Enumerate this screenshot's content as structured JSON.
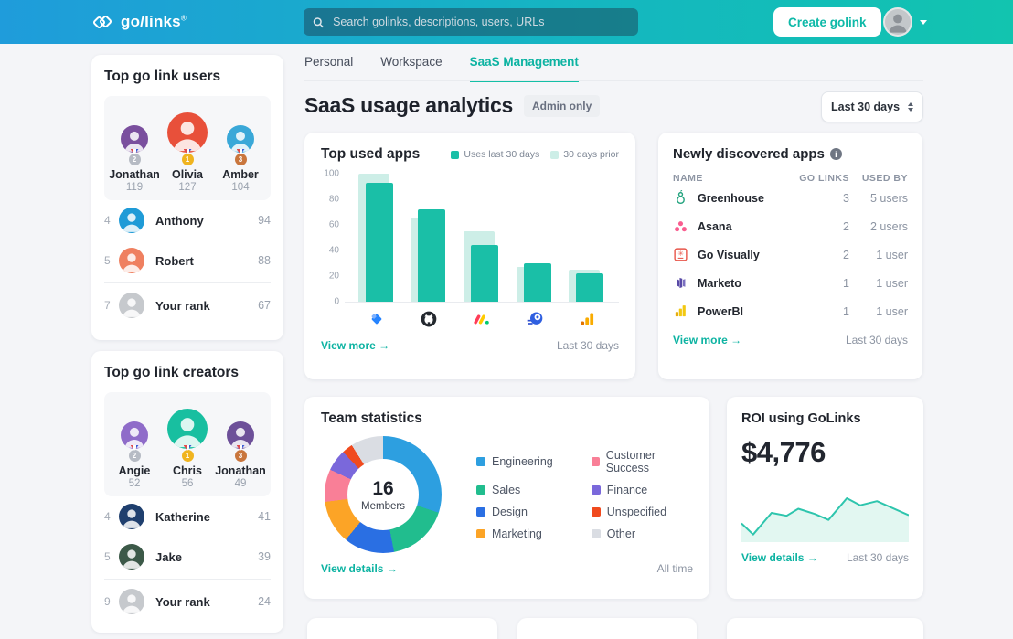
{
  "topbar": {
    "logo_text": "go/links",
    "logo_reg": "®",
    "search_placeholder": "Search golinks, descriptions, users, URLs",
    "create_button": "Create golink",
    "accent_color": "#0eb9a8",
    "gradient": [
      "#1f9cdb",
      "#12c4af"
    ]
  },
  "sidebar": {
    "cards": [
      {
        "key": "users_card",
        "title": "Top go link users",
        "podium": [
          {
            "name": "Jonathan",
            "value": "119",
            "medal": "2",
            "medal_type": "silver",
            "avatar_color": "#7a4f9e"
          },
          {
            "name": "Olivia",
            "value": "127",
            "medal": "1",
            "medal_type": "gold",
            "avatar_color": "#e8503a"
          },
          {
            "name": "Amber",
            "value": "104",
            "medal": "3",
            "medal_type": "bronze",
            "avatar_color": "#3aa8d8"
          }
        ],
        "rows": [
          {
            "rank": "4",
            "name": "Anthony",
            "value": "94",
            "avatar_color": "#1f9bd7"
          },
          {
            "rank": "5",
            "name": "Robert",
            "value": "88",
            "avatar_color": "#ef8060"
          }
        ],
        "your_rank": {
          "rank": "7",
          "name": "Your rank",
          "value": "67",
          "avatar_color": "#c6c9cd"
        }
      },
      {
        "key": "creators_card",
        "title": "Top go link creators",
        "podium": [
          {
            "name": "Angie",
            "value": "52",
            "medal": "2",
            "medal_type": "silver",
            "avatar_color": "#8f6cc9"
          },
          {
            "name": "Chris",
            "value": "56",
            "medal": "1",
            "medal_type": "gold",
            "avatar_color": "#18bfa0"
          },
          {
            "name": "Jonathan",
            "value": "49",
            "medal": "3",
            "medal_type": "bronze",
            "avatar_color": "#6d5099"
          }
        ],
        "rows": [
          {
            "rank": "4",
            "name": "Katherine",
            "value": "41",
            "avatar_color": "#1f3f6e"
          },
          {
            "rank": "5",
            "name": "Jake",
            "value": "39",
            "avatar_color": "#3c5948"
          }
        ],
        "your_rank": {
          "rank": "9",
          "name": "Your rank",
          "value": "24",
          "avatar_color": "#c6c9cd"
        }
      }
    ]
  },
  "tabs": [
    {
      "label": "Personal",
      "active": false
    },
    {
      "label": "Workspace",
      "active": false
    },
    {
      "label": "SaaS Management",
      "active": true
    }
  ],
  "header": {
    "title": "SaaS usage analytics",
    "badge": "Admin only",
    "range_select": "Last 30 days"
  },
  "cards": {
    "top_used_apps": {
      "title": "Top used apps",
      "view_more": "View more",
      "arrow": "→",
      "footer_range": "Last 30 days"
    },
    "newly_discovered": {
      "title": "Newly discovered apps",
      "info_glyph": "i",
      "columns": [
        "NAME",
        "GO LINKS",
        "USED BY"
      ],
      "rows": [
        {
          "icon": "greenhouse-icon",
          "name": "Greenhouse",
          "golinks": "3",
          "used_by": "5 users"
        },
        {
          "icon": "asana-icon",
          "name": "Asana",
          "golinks": "2",
          "used_by": "2 users"
        },
        {
          "icon": "govisually-icon",
          "name": "Go Visually",
          "golinks": "2",
          "used_by": "1 user"
        },
        {
          "icon": "marketo-icon",
          "name": "Marketo",
          "golinks": "1",
          "used_by": "1 user"
        },
        {
          "icon": "powerbi-icon",
          "name": "PowerBI",
          "golinks": "1",
          "used_by": "1 user"
        }
      ],
      "view_more": "View more",
      "arrow": "→",
      "footer_range": "Last 30 days"
    },
    "team_statistics": {
      "title": "Team statistics",
      "view_details": "View details",
      "arrow": "→",
      "footer_range": "All time"
    },
    "roi": {
      "title": "ROI using GoLinks",
      "value": "$4,776",
      "view_details": "View details",
      "arrow": "→",
      "footer_range": "Last 30 days"
    }
  },
  "chart_data": [
    {
      "id": "top_used_apps",
      "type": "bar",
      "title": "Top used apps",
      "categories": [
        "Jira",
        "GitHub",
        "Monday",
        "Comet",
        "Google Analytics"
      ],
      "category_icons": [
        "jira-icon",
        "github-icon",
        "monday-icon",
        "comet-icon",
        "analytics-icon"
      ],
      "series": [
        {
          "name": "30 days prior",
          "color": "#cdeee7",
          "values": [
            100,
            66,
            55,
            27,
            25
          ]
        },
        {
          "name": "Uses last 30 days",
          "color": "#1abfa7",
          "values": [
            93,
            72,
            44,
            30,
            22
          ]
        }
      ],
      "ylim": [
        0,
        100
      ],
      "yticks": [
        0,
        20,
        40,
        60,
        80,
        100
      ],
      "legend_position": "top-right",
      "grid": false
    },
    {
      "id": "team_statistics",
      "type": "pie",
      "title": "Team statistics",
      "center_value": "16",
      "center_label": "Members",
      "slices": [
        {
          "label": "Engineering",
          "percent": 30,
          "color": "#2d9fe0"
        },
        {
          "label": "Sales",
          "percent": 17,
          "color": "#21bd8e"
        },
        {
          "label": "Design",
          "percent": 14,
          "color": "#2a6fe3"
        },
        {
          "label": "Marketing",
          "percent": 12,
          "color": "#fca426"
        },
        {
          "label": "Customer Success",
          "percent": 9,
          "color": "#f97f97"
        },
        {
          "label": "Finance",
          "percent": 6,
          "color": "#7a68db"
        },
        {
          "label": "Unspecified",
          "percent": 3,
          "color": "#f04a1e"
        },
        {
          "label": "Other",
          "percent": 9,
          "color": "#dadde3"
        }
      ],
      "legend_position": "right"
    },
    {
      "id": "roi_sparkline",
      "type": "area",
      "title": "ROI using GoLinks",
      "value_label": "$4,776",
      "line_color": "#2ec5ad",
      "fill_color": "#e2f7f1",
      "points": [
        [
          0,
          32
        ],
        [
          7,
          13
        ],
        [
          18,
          50
        ],
        [
          27,
          45
        ],
        [
          34,
          57
        ],
        [
          44,
          48
        ],
        [
          52,
          38
        ],
        [
          63,
          75
        ],
        [
          71,
          63
        ],
        [
          81,
          70
        ],
        [
          100,
          46
        ]
      ]
    }
  ]
}
